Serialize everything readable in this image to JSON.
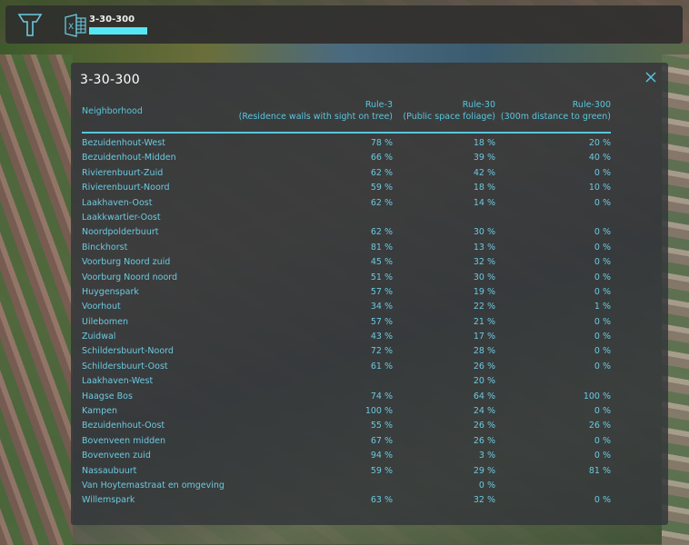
{
  "topbar": {
    "logo_icon": "tygron-logo-icon",
    "file_icon": "excel-icon",
    "file_title": "3-30-300",
    "progress_color": "#55e6f5"
  },
  "panel": {
    "title": "3-30-300",
    "close_icon": "close-icon",
    "accent_color": "#57c7dd",
    "columns": {
      "neighborhood": "Neighborhood",
      "rule3_title": "Rule-3",
      "rule3_sub": "(Residence walls with sight on tree)",
      "rule30_title": "Rule-30",
      "rule30_sub": "(Public space foliage)",
      "rule300_title": "Rule-300",
      "rule300_sub": "(300m distance to green)"
    },
    "rows": [
      {
        "name": "Bezuidenhout-West",
        "r3": "78 %",
        "r30": "18 %",
        "r300": "20 %"
      },
      {
        "name": "Bezuidenhout-Midden",
        "r3": "66 %",
        "r30": "39 %",
        "r300": "40 %"
      },
      {
        "name": "Rivierenbuurt-Zuid",
        "r3": "62 %",
        "r30": "42 %",
        "r300": "0 %"
      },
      {
        "name": "Rivierenbuurt-Noord",
        "r3": "59 %",
        "r30": "18 %",
        "r300": "10 %"
      },
      {
        "name": "Laakhaven-Oost",
        "r3": "62 %",
        "r30": "14 %",
        "r300": "0 %"
      },
      {
        "name": "Laakkwartier-Oost",
        "r3": "",
        "r30": "",
        "r300": ""
      },
      {
        "name": "Noordpolderbuurt",
        "r3": "62 %",
        "r30": "30 %",
        "r300": "0 %"
      },
      {
        "name": "Binckhorst",
        "r3": "81 %",
        "r30": "13 %",
        "r300": "0 %"
      },
      {
        "name": "Voorburg Noord zuid",
        "r3": "45 %",
        "r30": "32 %",
        "r300": "0 %"
      },
      {
        "name": "Voorburg Noord noord",
        "r3": "51 %",
        "r30": "30 %",
        "r300": "0 %"
      },
      {
        "name": "Huygenspark",
        "r3": "57 %",
        "r30": "19 %",
        "r300": "0 %"
      },
      {
        "name": "Voorhout",
        "r3": "34 %",
        "r30": "22 %",
        "r300": "1 %"
      },
      {
        "name": "Uilebomen",
        "r3": "57 %",
        "r30": "21 %",
        "r300": "0 %"
      },
      {
        "name": "Zuidwal",
        "r3": "43 %",
        "r30": "17 %",
        "r300": "0 %"
      },
      {
        "name": "Schildersbuurt-Noord",
        "r3": "72 %",
        "r30": "28 %",
        "r300": "0 %"
      },
      {
        "name": "Schildersbuurt-Oost",
        "r3": "61 %",
        "r30": "26 %",
        "r300": "0 %"
      },
      {
        "name": "Laakhaven-West",
        "r3": "",
        "r30": "20 %",
        "r300": ""
      },
      {
        "name": "Haagse Bos",
        "r3": "74 %",
        "r30": "64 %",
        "r300": "100 %"
      },
      {
        "name": "Kampen",
        "r3": "100 %",
        "r30": "24 %",
        "r300": "0 %"
      },
      {
        "name": "Bezuidenhout-Oost",
        "r3": "55 %",
        "r30": "26 %",
        "r300": "26 %"
      },
      {
        "name": "Bovenveen midden",
        "r3": "67 %",
        "r30": "26 %",
        "r300": "0 %"
      },
      {
        "name": "Bovenveen zuid",
        "r3": "94 %",
        "r30": "3 %",
        "r300": "0 %"
      },
      {
        "name": "Nassaubuurt",
        "r3": "59 %",
        "r30": "29 %",
        "r300": "81 %"
      },
      {
        "name": "Van Hoytemastraat en omgeving",
        "r3": "",
        "r30": "0 %",
        "r300": ""
      },
      {
        "name": "Willemspark",
        "r3": "63 %",
        "r30": "32 %",
        "r300": "0 %"
      }
    ]
  }
}
